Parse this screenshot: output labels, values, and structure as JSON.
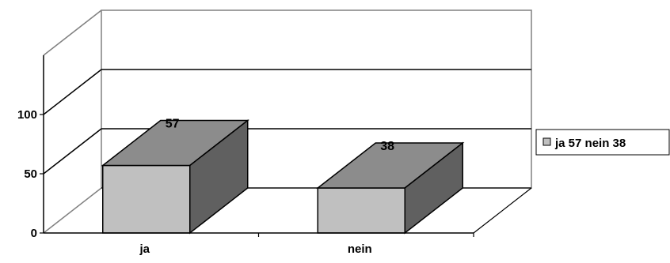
{
  "chart_data": {
    "type": "bar",
    "categories": [
      "ja",
      "nein"
    ],
    "values": [
      57,
      38
    ],
    "yticks": [
      0,
      50,
      100
    ],
    "ylim": [
      0,
      150
    ],
    "grid": true,
    "legend_position": "right",
    "legend_label": "ja 57  nein 38",
    "colors": {
      "front": "#c0c0c0",
      "top": "#8c8c8c",
      "side": "#606060",
      "grid": "#000000",
      "wall": "#808080"
    }
  }
}
